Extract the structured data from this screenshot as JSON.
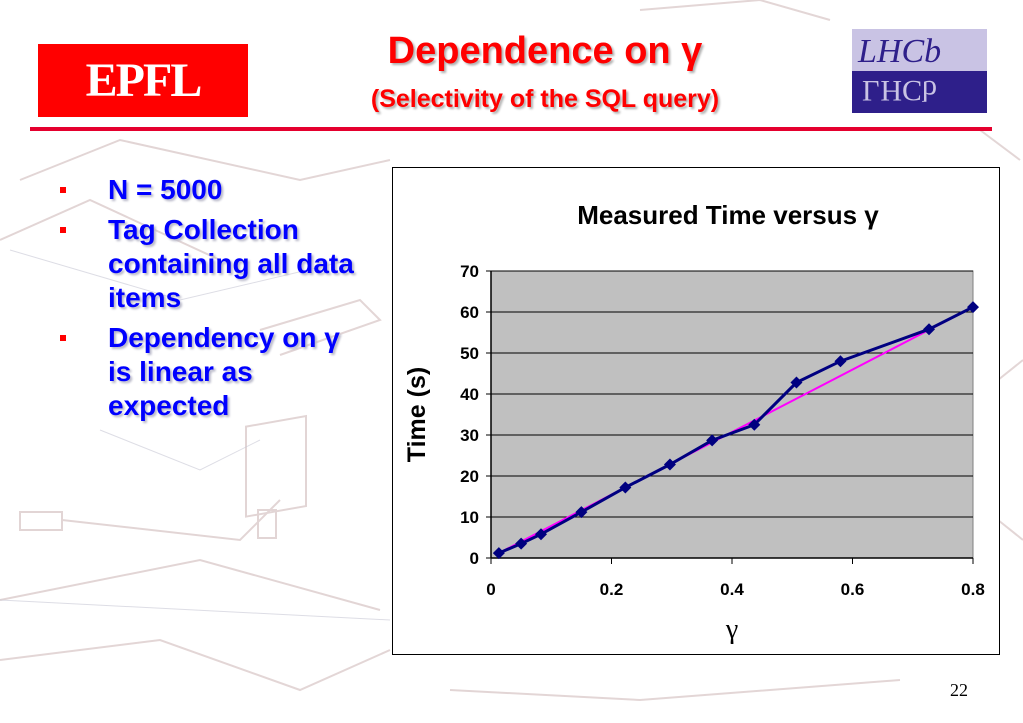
{
  "slide": {
    "title": "Dependence on γ",
    "subtitle": "(Selectivity of the SQL query)",
    "page_number": "22",
    "left_logo": "EPFL",
    "right_logo": "LHCb",
    "accent_color": "#ff0000",
    "bullet_color": "#0000ff",
    "bullets": [
      {
        "text": "N = 5000"
      },
      {
        "text": "Tag Collection containing all data items"
      },
      {
        "text": "Dependency on γ is linear as expected"
      }
    ]
  },
  "chart_data": {
    "type": "line",
    "title": "Measured Time versus γ",
    "xlabel": "γ",
    "ylabel": "Time (s)",
    "xlim": [
      0,
      0.8
    ],
    "ylim": [
      0,
      70
    ],
    "xticks": [
      "0",
      "0.2",
      "0.4",
      "0.6",
      "0.8"
    ],
    "yticks": [
      "0",
      "10",
      "20",
      "30",
      "40",
      "50",
      "60",
      "70"
    ],
    "grid": true,
    "legend": "none",
    "plot_background": "#c0c0c0",
    "series": [
      {
        "color": "#000080",
        "marker": "diamond",
        "x": [
          0.013,
          0.05,
          0.083,
          0.15,
          0.223,
          0.297,
          0.367,
          0.437,
          0.507,
          0.58,
          0.727,
          0.8
        ],
        "y": [
          1.2,
          3.5,
          5.8,
          11.2,
          17.2,
          22.8,
          28.7,
          32.5,
          42.8,
          48.0,
          55.8,
          61.2
        ]
      },
      {
        "color": "#ff00ff",
        "marker": "none",
        "x": [
          0.013,
          0.8
        ],
        "y": [
          1.2,
          61.2
        ]
      }
    ]
  }
}
